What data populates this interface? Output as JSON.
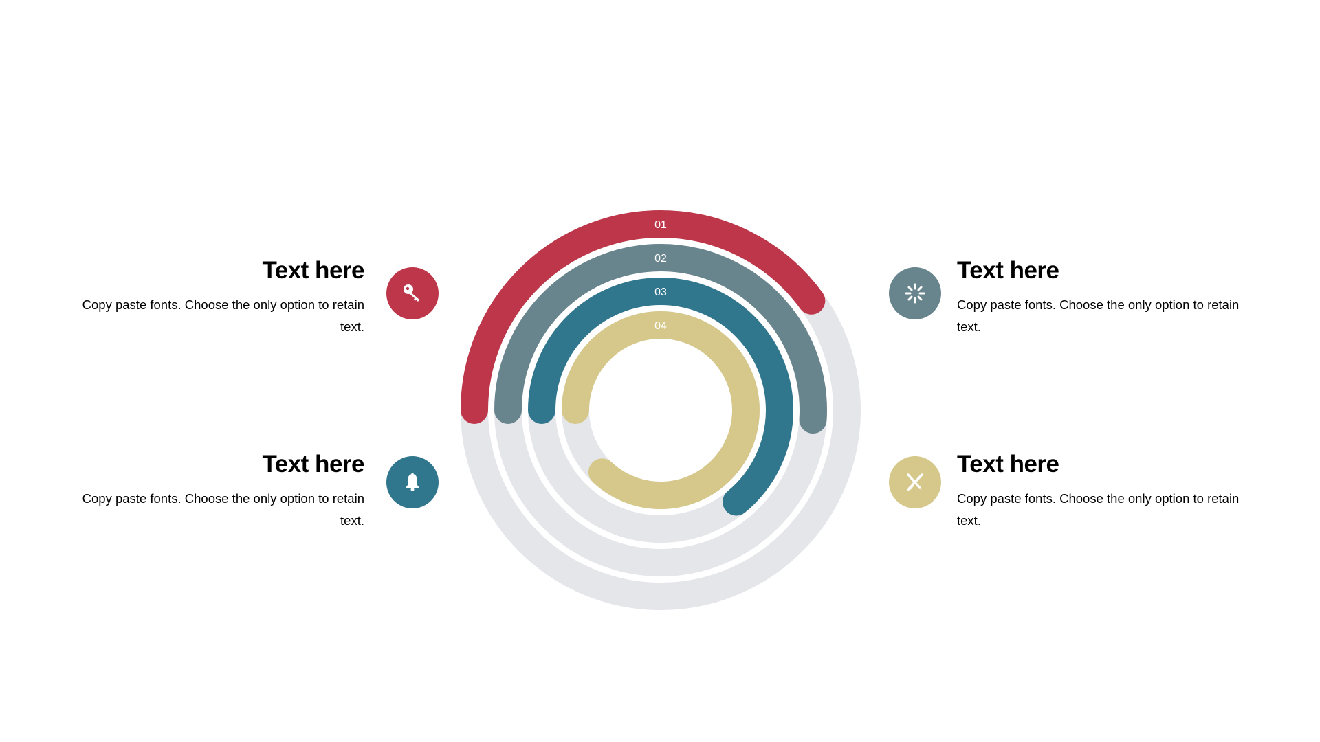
{
  "chart_data": {
    "type": "radial-bar",
    "track_color": "#e5e6ea",
    "rings": [
      {
        "label": "01",
        "value": 0.4,
        "color": "#bd3649"
      },
      {
        "label": "02",
        "value": 0.51,
        "color": "#68858d"
      },
      {
        "label": "03",
        "value": 0.64,
        "color": "#30768d"
      },
      {
        "label": "04",
        "value": 0.87,
        "color": "#d6c88a"
      }
    ]
  },
  "items": [
    {
      "title": "Text here",
      "body": "Copy paste fonts. Choose the only option to retain text.",
      "icon": "key-icon",
      "color": "#bd3649"
    },
    {
      "title": "Text here",
      "body": "Copy paste fonts. Choose the only option to retain text.",
      "icon": "loading-icon",
      "color": "#68858d"
    },
    {
      "title": "Text here",
      "body": "Copy paste fonts. Choose the only option to retain text.",
      "icon": "bell-icon",
      "color": "#30768d"
    },
    {
      "title": "Text here",
      "body": "Copy paste fonts. Choose the only option to retain text.",
      "icon": "design-tools-icon",
      "color": "#d6c88a"
    }
  ]
}
